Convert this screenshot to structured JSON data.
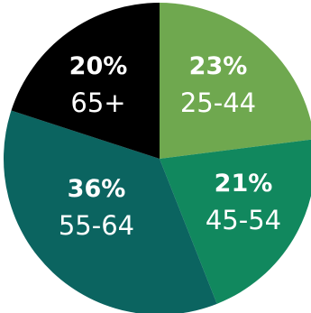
{
  "chart_data": {
    "type": "pie",
    "title": "",
    "slices": [
      {
        "label": "25-44",
        "value": 23,
        "display": "23%",
        "color": "#6fa84f"
      },
      {
        "label": "45-54",
        "value": 21,
        "display": "21%",
        "color": "#11885e"
      },
      {
        "label": "55-64",
        "value": 36,
        "display": "36%",
        "color": "#0b6460"
      },
      {
        "label": "65+",
        "value": 20,
        "display": "20%",
        "color": "#000000"
      }
    ],
    "start": "12 o'clock",
    "direction": "clockwise",
    "legend": "none"
  }
}
